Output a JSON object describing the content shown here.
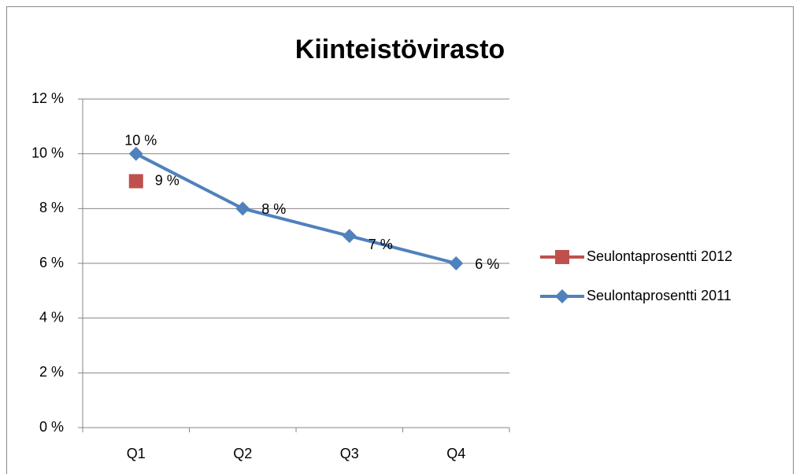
{
  "chart_data": {
    "type": "line",
    "title": "Kiinteistövirasto",
    "categories": [
      "Q1",
      "Q2",
      "Q3",
      "Q4"
    ],
    "series": [
      {
        "name": "Seulontaprosentti 2012",
        "color": "#c0504d",
        "marker": "square",
        "values": [
          9,
          null,
          null,
          null
        ],
        "value_labels": [
          "9 %",
          null,
          null,
          null
        ]
      },
      {
        "name": "Seulontaprosentti 2011",
        "color": "#4f81bd",
        "marker": "diamond",
        "values": [
          10,
          8,
          7,
          6
        ],
        "value_labels": [
          "10 %",
          "8 %",
          "7 %",
          "6 %"
        ]
      }
    ],
    "ylim": [
      0,
      12
    ],
    "yticks": [
      {
        "value": 0,
        "label": "0 %"
      },
      {
        "value": 2,
        "label": "2 %"
      },
      {
        "value": 4,
        "label": "4 %"
      },
      {
        "value": 6,
        "label": "6 %"
      },
      {
        "value": 8,
        "label": "8 %"
      },
      {
        "value": 10,
        "label": "10 %"
      },
      {
        "value": 12,
        "label": "12 %"
      }
    ],
    "grid": true,
    "legend": "right"
  }
}
